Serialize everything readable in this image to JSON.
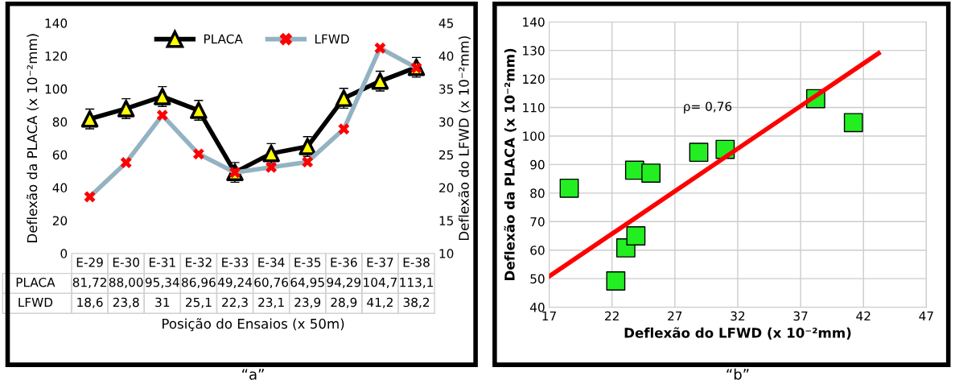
{
  "chart_data": [
    {
      "type": "line",
      "xlabel": "Posição do Ensaios (x 50m)",
      "ylabel": "Deflexão da PLACA (x 10⁻²mm)",
      "y2label": "Deflexão do LFWD (x 10⁻²mm)",
      "categories": [
        "E-29",
        "E-30",
        "E-31",
        "E-32",
        "E-33",
        "E-34",
        "E-35",
        "E-36",
        "E-37",
        "E-38"
      ],
      "series": [
        {
          "name": "PLACA",
          "color": "#000000",
          "marker": "triangle",
          "colors": [
            "#ffff00",
            "#ffff00",
            "#ffff00",
            "#ffff00",
            "#ffff00",
            "#ffff00",
            "#ffff00",
            "#ffff00",
            "#ffff00",
            "#ffff00"
          ],
          "values": [
            81.72,
            88.0,
            95.34,
            86.96,
            49.24,
            60.76,
            64.95,
            94.29,
            104.7,
            113.1
          ],
          "errors": [
            6,
            6,
            6,
            6,
            6,
            6,
            6,
            6,
            6,
            6
          ],
          "value_labels": [
            "81,72",
            "88,00",
            "95,34",
            "86,96",
            "49,24",
            "60,76",
            "64,95",
            "94,29",
            "104,7",
            "113,1"
          ]
        },
        {
          "name": "LFWD",
          "color": "#93b3c3",
          "marker": "cross",
          "colors": [
            "#ff0000",
            "#ff0000",
            "#ff0000",
            "#ff0000",
            "#ff0000",
            "#ff0000",
            "#ff0000",
            "#ff0000",
            "#ff0000",
            "#ff0000"
          ],
          "axis": "y2",
          "values": [
            18.6,
            23.8,
            31,
            25.1,
            22.3,
            23.1,
            23.9,
            28.9,
            41.2,
            38.2
          ],
          "value_labels": [
            "18,6",
            "23,8",
            "31",
            "25,1",
            "22,3",
            "23,1",
            "23,9",
            "28,9",
            "41,2",
            "38,2"
          ]
        }
      ],
      "ylim": [
        0,
        140
      ],
      "yticks": [
        0,
        20,
        40,
        60,
        80,
        100,
        120,
        140
      ],
      "y2lim": [
        10,
        45
      ],
      "y2ticks": [
        10,
        15,
        20,
        25,
        30,
        35,
        40,
        45
      ],
      "data_labels": true,
      "legend": "top",
      "grid": false,
      "annotations": [
        "“a”"
      ]
    },
    {
      "type": "scatter",
      "xlabel": "Deflexão do LFWD (x 10⁻²mm)",
      "ylabel": "Deflexão da PLACA (x 10⁻²mm)",
      "series": [
        {
          "color": "#22ee22",
          "marker": "square",
          "x": [
            18.6,
            23.8,
            31,
            25.1,
            22.3,
            23.1,
            23.9,
            28.9,
            41.2,
            38.2
          ],
          "values": [
            81.7,
            88,
            95.3,
            87,
            49.2,
            60.8,
            65,
            94.3,
            104.7,
            113.1
          ]
        },
        {
          "type": "line",
          "color": "#ff0000",
          "x": [
            17,
            43.2
          ],
          "values": [
            50.8,
            129
          ]
        }
      ],
      "xlim": [
        17,
        47
      ],
      "xticks": [
        17,
        22,
        27,
        32,
        37,
        42,
        47
      ],
      "ylim": [
        40,
        140
      ],
      "yticks": [
        40,
        50,
        60,
        70,
        80,
        90,
        100,
        110,
        120,
        130,
        140
      ],
      "grid": true,
      "legend": false,
      "annotations": [
        "ρ= 0,76",
        "“b”"
      ]
    }
  ]
}
